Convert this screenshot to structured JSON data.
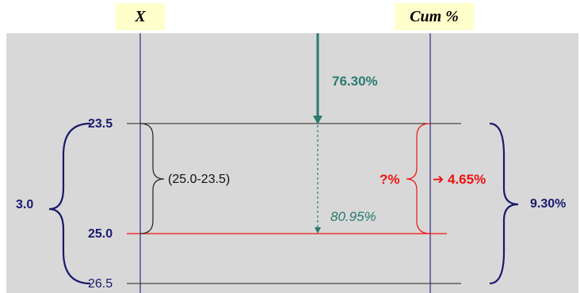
{
  "headers": {
    "x": "X",
    "cum": "Cum %"
  },
  "x_values": {
    "top": "23.5",
    "mid": "25.0",
    "bottom": "26.5"
  },
  "span_total": "3.0",
  "difference_expr": "(25.0-23.5)",
  "upper_pct": "76.30%",
  "lower_pct": "80.95%",
  "unknown_pct": "?%",
  "arrow_glyph": "➔",
  "half_pct": "4.65%",
  "total_pct": "9.30%",
  "colors": {
    "navy": "#1a1a6e",
    "teal": "#2a7a70",
    "red": "#ee1111",
    "header_bg": "#ffffcc",
    "panel_bg": "#d8d8d8"
  }
}
